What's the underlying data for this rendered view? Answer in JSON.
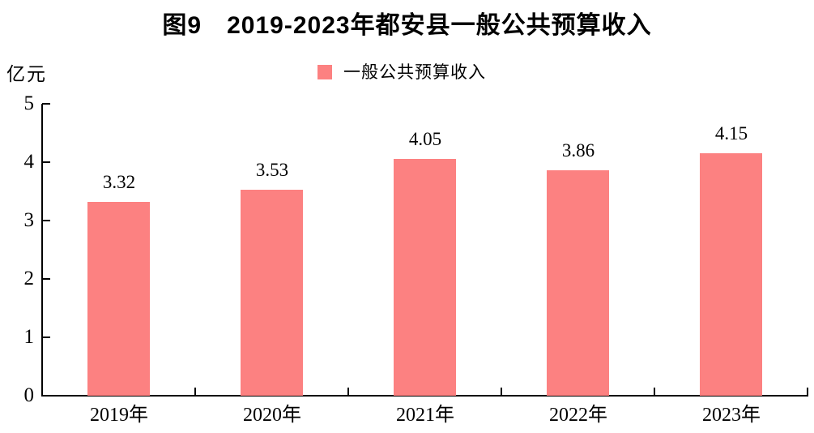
{
  "title": "图9　2019-2023年都安县一般公共预算收入",
  "y_axis_unit_label": "亿元",
  "legend": {
    "label": "一般公共预算收入",
    "swatch_color": "#fc8181"
  },
  "colors": {
    "bar": "#fc8181",
    "axis": "#000000",
    "text": "#000000",
    "background": "#ffffff"
  },
  "chart_data": {
    "type": "bar",
    "title": "图9　2019-2023年都安县一般公共预算收入",
    "categories": [
      "2019年",
      "2020年",
      "2021年",
      "2022年",
      "2023年"
    ],
    "values": [
      3.32,
      3.53,
      4.05,
      3.86,
      4.15
    ],
    "value_labels": [
      "3.32",
      "3.53",
      "4.05",
      "3.86",
      "4.15"
    ],
    "series_name": "一般公共预算收入",
    "xlabel": "",
    "ylabel": "亿元",
    "ylim": [
      0,
      5
    ],
    "yticks": [
      0,
      1,
      2,
      3,
      4,
      5
    ],
    "bar_color": "#fc8181",
    "grid": false,
    "legend_position": "top-center",
    "data_labels": "above-bars"
  }
}
